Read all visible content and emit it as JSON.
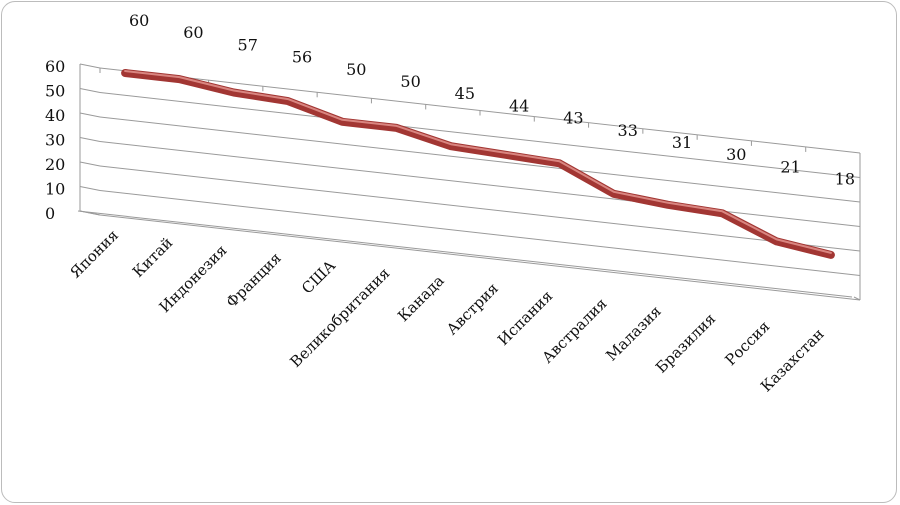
{
  "chart_data": {
    "type": "line",
    "style": "3d",
    "categories": [
      "Япония",
      "Китай",
      "Индонезия",
      "Франция",
      "США",
      "Великобритания",
      "Канада",
      "Австрия",
      "Испания",
      "Австралия",
      "Малазия",
      "Бразилия",
      "Россия",
      "Казахстан"
    ],
    "values": [
      60,
      60,
      57,
      56,
      50,
      50,
      45,
      44,
      43,
      33,
      31,
      30,
      21,
      18
    ],
    "ylim": [
      0,
      60
    ],
    "yticks": [
      0,
      10,
      20,
      30,
      40,
      50,
      60
    ],
    "grid": true,
    "legend": "none",
    "colors": {
      "line": "#a23633",
      "line_highlight": "#d98580",
      "grid": "#9a9a9a"
    }
  }
}
